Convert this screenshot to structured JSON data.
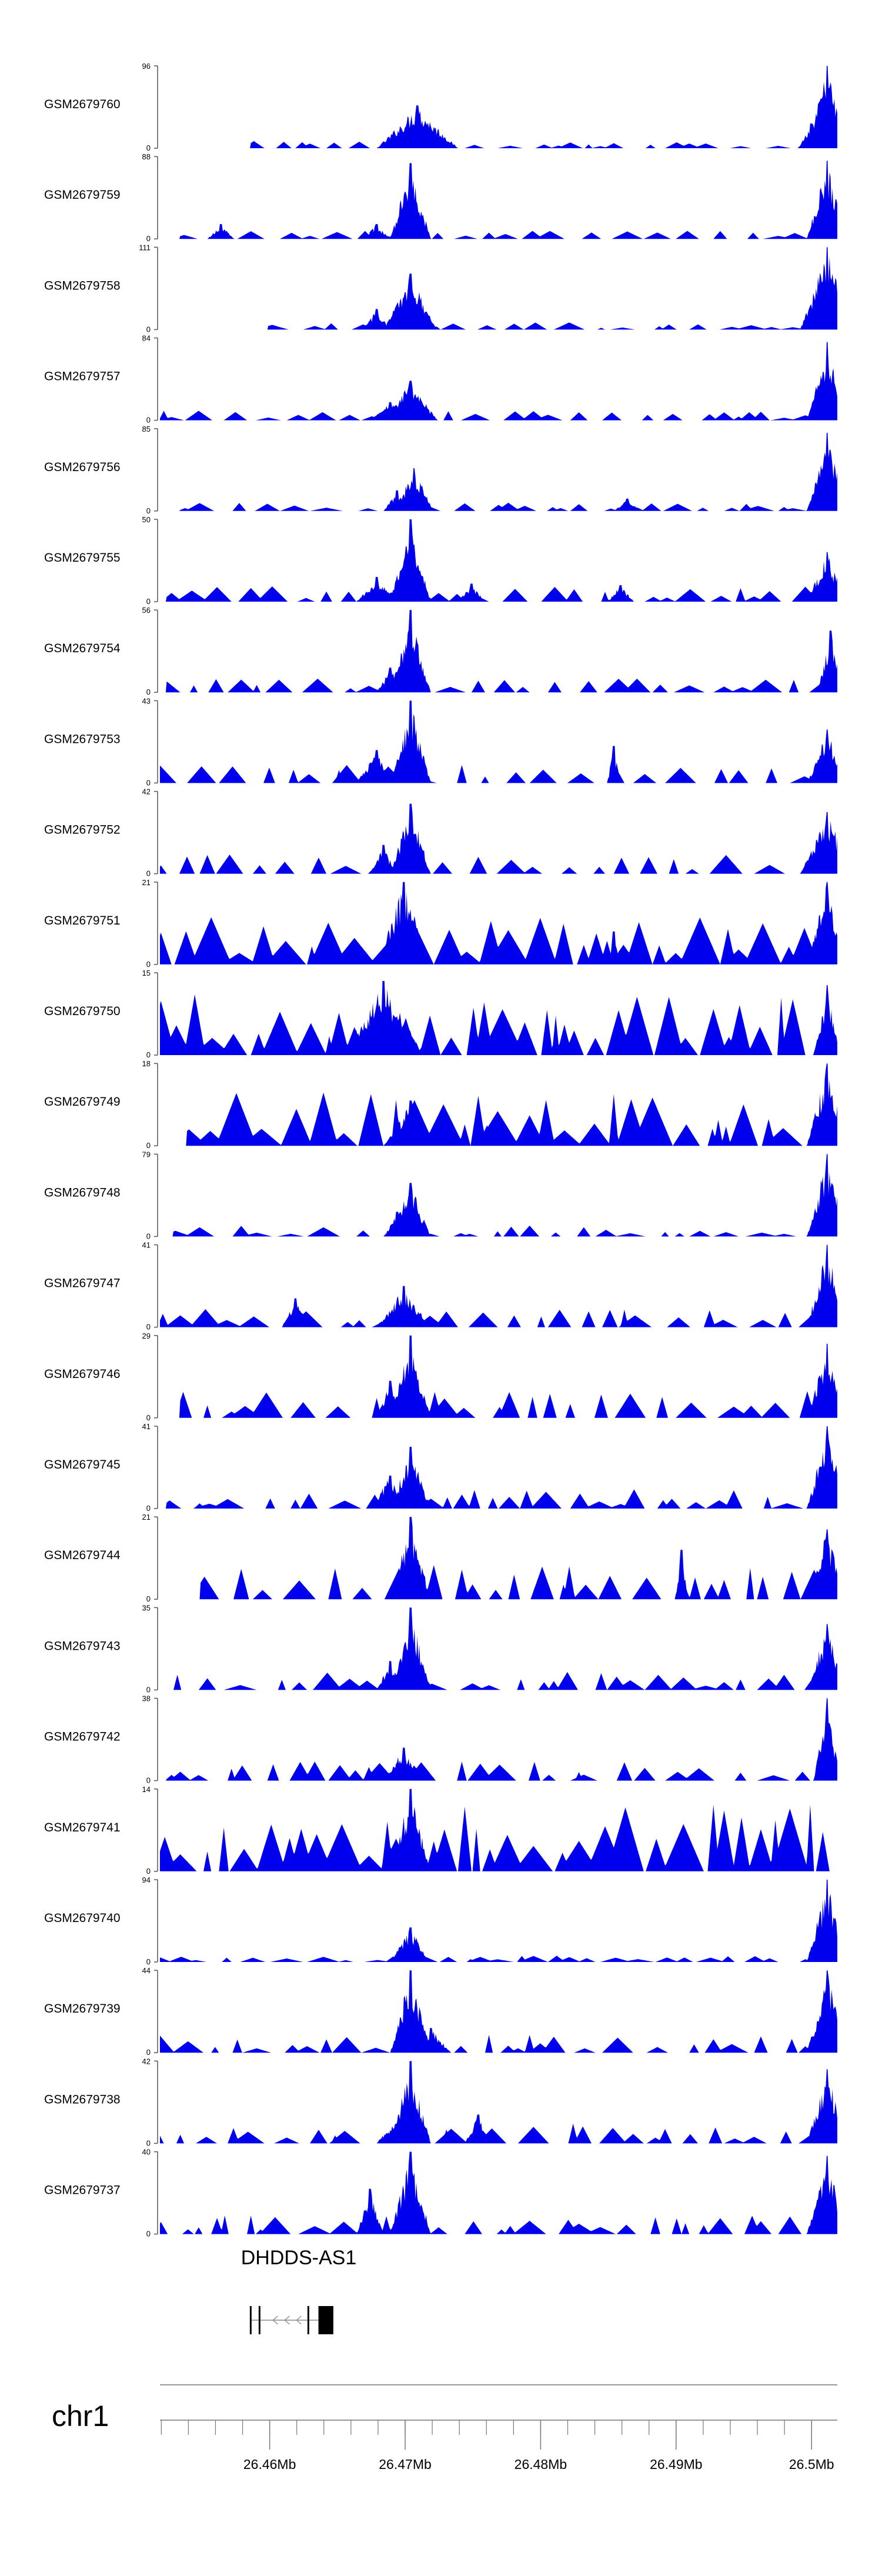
{
  "chart_data": {
    "type": "area",
    "title": "",
    "colors": {
      "signal": "#0000ee",
      "axis": "#555555",
      "gene": "#000000",
      "text": "#000000"
    },
    "x_range_mb": [
      26.4519,
      26.5019
    ],
    "chromosome": "chr1",
    "x_ticks": [
      {
        "value": 26.46,
        "label": "26.46Mb"
      },
      {
        "value": 26.47,
        "label": "26.47Mb"
      },
      {
        "value": 26.48,
        "label": "26.48Mb"
      },
      {
        "value": 26.49,
        "label": "26.49Mb"
      },
      {
        "value": 26.5,
        "label": "26.5Mb"
      }
    ],
    "gene": {
      "name": "DHDDS-AS1",
      "start_mb": 26.4586,
      "end_mb": 26.4647,
      "strand": "-",
      "exon_start_mb": 26.4636,
      "exon_end_mb": 26.4647
    },
    "tracks": [
      {
        "name": "GSM2679760",
        "ymin": "0",
        "ymax": "96",
        "start": 0.135,
        "bursts": [
          [
            0.38,
            0.52,
            0.06
          ],
          [
            0.36,
            0.15,
            0.02
          ],
          [
            0.985,
            1.0,
            0.03
          ],
          [
            0.962,
            0.3,
            0.02
          ]
        ],
        "base": 0.08
      },
      {
        "name": "GSM2679759",
        "ymin": "0",
        "ymax": "88",
        "start": 0.03,
        "bursts": [
          [
            0.37,
            0.92,
            0.03
          ],
          [
            0.32,
            0.18,
            0.02
          ],
          [
            0.985,
            0.95,
            0.03
          ],
          [
            0.09,
            0.18,
            0.02
          ]
        ],
        "base": 0.1
      },
      {
        "name": "GSM2679758",
        "ymin": "0",
        "ymax": "111",
        "start": 0.16,
        "bursts": [
          [
            0.37,
            0.68,
            0.04
          ],
          [
            0.32,
            0.25,
            0.02
          ],
          [
            0.985,
            1.0,
            0.04
          ]
        ],
        "base": 0.08
      },
      {
        "name": "GSM2679757",
        "ymin": "0",
        "ymax": "84",
        "start": 0.0,
        "bursts": [
          [
            0.37,
            0.48,
            0.04
          ],
          [
            0.34,
            0.22,
            0.03
          ],
          [
            0.985,
            0.95,
            0.03
          ]
        ],
        "base": 0.12
      },
      {
        "name": "GSM2679756",
        "ymin": "0",
        "ymax": "85",
        "start": 0.03,
        "bursts": [
          [
            0.375,
            0.52,
            0.03
          ],
          [
            0.35,
            0.25,
            0.02
          ],
          [
            0.985,
            0.95,
            0.03
          ],
          [
            0.69,
            0.15,
            0.02
          ]
        ],
        "base": 0.1
      },
      {
        "name": "GSM2679755",
        "ymin": "0",
        "ymax": "50",
        "start": 0.01,
        "bursts": [
          [
            0.37,
            1.0,
            0.03
          ],
          [
            0.32,
            0.3,
            0.03
          ],
          [
            0.985,
            0.6,
            0.03
          ],
          [
            0.46,
            0.22,
            0.02
          ],
          [
            0.68,
            0.2,
            0.02
          ]
        ],
        "base": 0.18
      },
      {
        "name": "GSM2679754",
        "ymin": "0",
        "ymax": "56",
        "start": 0.01,
        "bursts": [
          [
            0.37,
            1.0,
            0.03
          ],
          [
            0.34,
            0.3,
            0.02
          ],
          [
            0.99,
            0.75,
            0.02
          ]
        ],
        "base": 0.16
      },
      {
        "name": "GSM2679753",
        "ymin": "0",
        "ymax": "43",
        "start": 0.0,
        "bursts": [
          [
            0.37,
            1.0,
            0.03
          ],
          [
            0.32,
            0.4,
            0.03
          ],
          [
            0.67,
            0.45,
            0.01
          ],
          [
            0.985,
            0.65,
            0.03
          ]
        ],
        "base": 0.2
      },
      {
        "name": "GSM2679752",
        "ymin": "0",
        "ymax": "42",
        "start": 0.0,
        "bursts": [
          [
            0.37,
            0.85,
            0.03
          ],
          [
            0.33,
            0.35,
            0.02
          ],
          [
            0.985,
            0.75,
            0.04
          ]
        ],
        "base": 0.22
      },
      {
        "name": "GSM2679751",
        "ymin": "0",
        "ymax": "21",
        "start": 0.0,
        "bursts": [
          [
            0.36,
            1.0,
            0.04
          ],
          [
            0.985,
            1.0,
            0.03
          ],
          [
            0.67,
            0.4,
            0.01
          ]
        ],
        "base": 0.55
      },
      {
        "name": "GSM2679750",
        "ymin": "0",
        "ymax": "15",
        "start": 0.0,
        "bursts": [
          [
            0.33,
            0.9,
            0.06
          ],
          [
            0.985,
            0.85,
            0.02
          ]
        ],
        "base": 0.7
      },
      {
        "name": "GSM2679749",
        "ymin": "0",
        "ymax": "18",
        "start": 0.04,
        "bursts": [
          [
            0.37,
            0.55,
            0.04
          ],
          [
            0.985,
            1.0,
            0.03
          ]
        ],
        "base": 0.6
      },
      {
        "name": "GSM2679748",
        "ymin": "0",
        "ymax": "79",
        "start": 0.02,
        "bursts": [
          [
            0.37,
            0.65,
            0.03
          ],
          [
            0.35,
            0.3,
            0.02
          ],
          [
            0.985,
            1.0,
            0.03
          ]
        ],
        "base": 0.12
      },
      {
        "name": "GSM2679747",
        "ymin": "0",
        "ymax": "41",
        "start": 0.0,
        "bursts": [
          [
            0.36,
            0.5,
            0.04
          ],
          [
            0.2,
            0.35,
            0.02
          ],
          [
            0.985,
            1.0,
            0.03
          ]
        ],
        "base": 0.2
      },
      {
        "name": "GSM2679746",
        "ymin": "0",
        "ymax": "29",
        "start": 0.03,
        "bursts": [
          [
            0.37,
            1.0,
            0.03
          ],
          [
            0.985,
            0.9,
            0.03
          ],
          [
            0.34,
            0.45,
            0.02
          ]
        ],
        "base": 0.3
      },
      {
        "name": "GSM2679745",
        "ymin": "0",
        "ymax": "41",
        "start": 0.01,
        "bursts": [
          [
            0.37,
            0.75,
            0.03
          ],
          [
            0.34,
            0.4,
            0.03
          ],
          [
            0.985,
            1.0,
            0.03
          ]
        ],
        "base": 0.22
      },
      {
        "name": "GSM2679744",
        "ymin": "0",
        "ymax": "21",
        "start": 0.06,
        "bursts": [
          [
            0.37,
            1.0,
            0.03
          ],
          [
            0.985,
            0.85,
            0.03
          ],
          [
            0.77,
            0.6,
            0.01
          ]
        ],
        "base": 0.4
      },
      {
        "name": "GSM2679743",
        "ymin": "0",
        "ymax": "35",
        "start": 0.02,
        "bursts": [
          [
            0.37,
            1.0,
            0.03
          ],
          [
            0.34,
            0.35,
            0.02
          ],
          [
            0.985,
            0.8,
            0.03
          ]
        ],
        "base": 0.2
      },
      {
        "name": "GSM2679742",
        "ymin": "0",
        "ymax": "38",
        "start": 0.01,
        "bursts": [
          [
            0.36,
            0.4,
            0.03
          ],
          [
            0.985,
            1.0,
            0.02
          ]
        ],
        "base": 0.22
      },
      {
        "name": "GSM2679741",
        "ymin": "0",
        "ymax": "14",
        "start": 0.0,
        "bursts": [
          [
            0.37,
            1.0,
            0.03
          ]
        ],
        "base": 0.75
      },
      {
        "name": "GSM2679740",
        "ymin": "0",
        "ymax": "94",
        "start": 0.0,
        "bursts": [
          [
            0.37,
            0.42,
            0.03
          ],
          [
            0.985,
            1.0,
            0.03
          ]
        ],
        "base": 0.07
      },
      {
        "name": "GSM2679739",
        "ymin": "0",
        "ymax": "44",
        "start": 0.0,
        "bursts": [
          [
            0.37,
            1.0,
            0.03
          ],
          [
            0.985,
            1.0,
            0.03
          ],
          [
            0.4,
            0.3,
            0.03
          ]
        ],
        "base": 0.2
      },
      {
        "name": "GSM2679738",
        "ymin": "0",
        "ymax": "42",
        "start": 0.0,
        "bursts": [
          [
            0.37,
            1.0,
            0.03
          ],
          [
            0.36,
            0.45,
            0.04
          ],
          [
            0.47,
            0.35,
            0.02
          ],
          [
            0.985,
            0.9,
            0.03
          ]
        ],
        "base": 0.22
      },
      {
        "name": "GSM2679737",
        "ymin": "0",
        "ymax": "40",
        "start": 0.0,
        "bursts": [
          [
            0.37,
            1.0,
            0.03
          ],
          [
            0.31,
            0.55,
            0.02
          ],
          [
            0.985,
            0.95,
            0.03
          ]
        ],
        "base": 0.22
      }
    ]
  }
}
